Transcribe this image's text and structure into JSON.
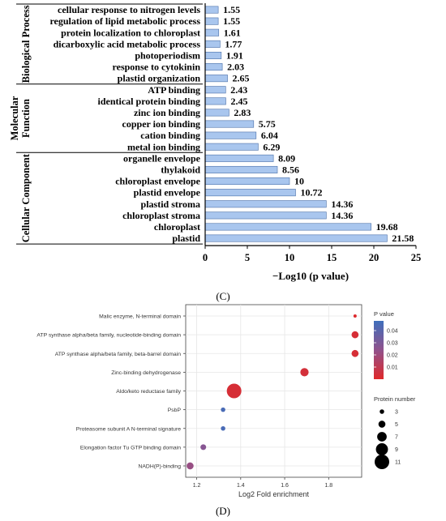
{
  "chart_data": [
    {
      "type": "bar",
      "orientation": "horizontal",
      "panel_label": "(C)",
      "xlabel": "−Log10 (p value)",
      "xlim": [
        0,
        25
      ],
      "xticks": [
        0,
        5,
        10,
        15,
        20,
        25
      ],
      "bar_color": "#a9c6ee",
      "groups": [
        {
          "name": "Biological Process",
          "categories": [
            "cellular response to nitrogen levels",
            "regulation of lipid metabolic process",
            "protein localization to chloroplast",
            "dicarboxylic acid metabolic process",
            "photoperiodism",
            "response to cytokinin",
            "plastid organization"
          ],
          "values": [
            1.55,
            1.55,
            1.61,
            1.77,
            1.91,
            2.03,
            2.65
          ],
          "value_labels": [
            "1.55",
            "1.55",
            "1.61",
            "1.77",
            "1.91",
            "2.03",
            "2.65"
          ]
        },
        {
          "name": "Molecular Function",
          "categories": [
            "ATP binding",
            "identical protein binding",
            "zinc ion binding",
            "copper ion binding",
            "cation binding",
            "metal ion binding"
          ],
          "values": [
            2.43,
            2.45,
            2.83,
            5.75,
            6.04,
            6.29
          ],
          "value_labels": [
            "2.43",
            "2.45",
            "2.83",
            "5.75",
            "6.04",
            "6.29"
          ]
        },
        {
          "name": "Cellular Component",
          "categories": [
            "organelle envelope",
            "thylakoid",
            "chloroplast envelope",
            "plastid envelope",
            "plastid stroma",
            "chloroplast stroma",
            "chloroplast",
            "plastid"
          ],
          "values": [
            8.09,
            8.56,
            10,
            10.72,
            14.36,
            14.36,
            19.68,
            21.58
          ],
          "value_labels": [
            "8.09",
            "8.56",
            "10",
            "10.72",
            "14.36",
            "14.36",
            "19.68",
            "21.58"
          ]
        }
      ]
    },
    {
      "type": "scatter",
      "subtype": "bubble",
      "panel_label": "(D)",
      "xlabel": "Log2 Fold enrichment",
      "xlim": [
        1.15,
        1.95
      ],
      "xticks": [
        "1.2",
        "1.4",
        "1.6",
        "1.8"
      ],
      "grid": true,
      "categories": [
        "Malic enzyme, N-terminal domain",
        "ATP synthase alpha/beta family, nucleotide-binding domain",
        "ATP synthase alpha/beta family, beta-barrel domain",
        "Zinc-binding dehydrogenase",
        "Aldo/keto reductase family",
        "PsbP",
        "Proteasome subunit A N-terminal signature",
        "Elongation factor Tu GTP binding domain",
        "NADH(P)-binding"
      ],
      "points": [
        {
          "x": 1.92,
          "pvalue": 0.001,
          "protein_number": 2
        },
        {
          "x": 1.92,
          "pvalue": 0.003,
          "protein_number": 5
        },
        {
          "x": 1.92,
          "pvalue": 0.003,
          "protein_number": 5
        },
        {
          "x": 1.69,
          "pvalue": 0.004,
          "protein_number": 6
        },
        {
          "x": 1.37,
          "pvalue": 0.003,
          "protein_number": 11
        },
        {
          "x": 1.32,
          "pvalue": 0.045,
          "protein_number": 3
        },
        {
          "x": 1.32,
          "pvalue": 0.045,
          "protein_number": 3
        },
        {
          "x": 1.23,
          "pvalue": 0.027,
          "protein_number": 4
        },
        {
          "x": 1.17,
          "pvalue": 0.022,
          "protein_number": 5
        }
      ],
      "color_legend": {
        "title": "P value",
        "ticks": [
          "0.04",
          "0.03",
          "0.02",
          "0.01"
        ],
        "low_color": "#e0292a",
        "high_color": "#3f6fbc",
        "range": [
          0,
          0.048
        ]
      },
      "size_legend": {
        "title": "Protein number",
        "labels": [
          "3",
          "5",
          "7",
          "9",
          "11"
        ],
        "values": [
          3,
          5,
          7,
          9,
          11
        ]
      }
    }
  ]
}
